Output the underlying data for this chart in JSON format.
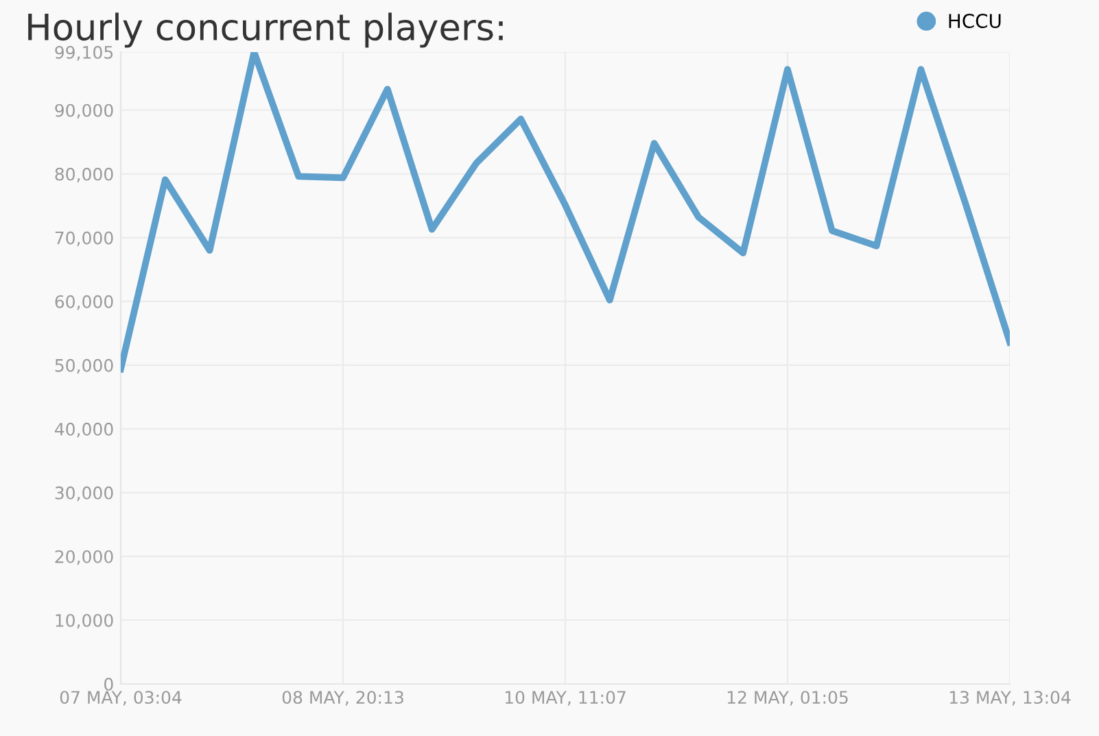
{
  "chart_data": {
    "type": "line",
    "title": "Hourly concurrent players:",
    "categories": [
      "07 MAY, 03:04",
      null,
      null,
      null,
      null,
      "08 MAY, 20:13",
      null,
      null,
      null,
      null,
      "10 MAY, 11:07",
      null,
      null,
      null,
      null,
      "12 MAY, 01:05",
      null,
      null,
      null,
      null,
      "13 MAY, 13:04"
    ],
    "series": [
      {
        "name": "HCCU",
        "color": "#5fa0cc",
        "values": [
          49400,
          79100,
          68000,
          99100,
          79600,
          79400,
          93300,
          71300,
          81700,
          88600,
          75100,
          60200,
          84800,
          73200,
          67600,
          96400,
          71100,
          68700,
          96400,
          75400,
          53600
        ]
      }
    ],
    "ylim": [
      0,
      99105
    ],
    "yticks": [
      0,
      {
        "value": 10000,
        "label": "10,000"
      },
      {
        "value": 20000,
        "label": "20,000"
      },
      {
        "value": 30000,
        "label": "30,000"
      },
      {
        "value": 40000,
        "label": "40,000"
      },
      {
        "value": 50000,
        "label": "50,000"
      },
      {
        "value": 60000,
        "label": "60,000"
      },
      {
        "value": 70000,
        "label": "70,000"
      },
      {
        "value": 80000,
        "label": "80,000"
      },
      {
        "value": 90000,
        "label": "90,000"
      },
      {
        "value": 99105,
        "label": "99,105"
      }
    ],
    "grid": true,
    "legend": "top right",
    "marker": "none",
    "line_style": "solid"
  }
}
